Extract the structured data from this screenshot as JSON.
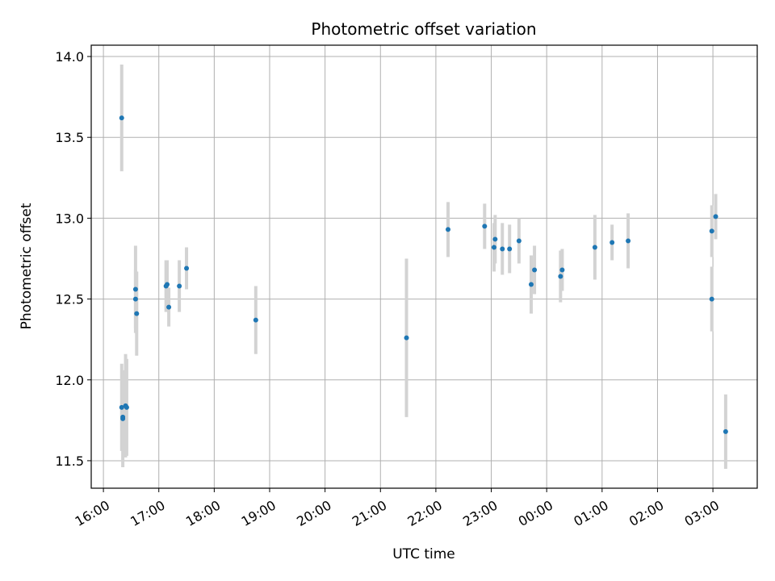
{
  "chart_data": {
    "type": "scatter",
    "title": "Photometric offset variation",
    "xlabel": "UTC time",
    "ylabel": "Photometric offset",
    "x_unit": "hours relative to 16:00 UTC (values past 24 are after midnight)",
    "xlim": [
      15.78,
      27.8
    ],
    "ylim": [
      11.33,
      14.07
    ],
    "x_ticks": [
      16,
      17,
      18,
      19,
      20,
      21,
      22,
      23,
      24,
      25,
      26,
      27
    ],
    "x_tick_labels": [
      "16:00",
      "17:00",
      "18:00",
      "19:00",
      "20:00",
      "21:00",
      "22:00",
      "23:00",
      "00:00",
      "01:00",
      "02:00",
      "03:00"
    ],
    "y_ticks": [
      11.5,
      12.0,
      12.5,
      13.0,
      13.5,
      14.0
    ],
    "y_tick_labels": [
      "11.5",
      "12.0",
      "12.5",
      "13.0",
      "13.5",
      "14.0"
    ],
    "grid": true,
    "marker_color": "#1f77b4",
    "errorbar_color": "#d3d3d3",
    "points": [
      {
        "x": 16.33,
        "y": 13.62,
        "err": 0.33
      },
      {
        "x": 16.33,
        "y": 11.83,
        "err": 0.27
      },
      {
        "x": 16.35,
        "y": 11.77,
        "err": 0.2
      },
      {
        "x": 16.35,
        "y": 11.76,
        "err": 0.3
      },
      {
        "x": 16.4,
        "y": 11.84,
        "err": 0.32
      },
      {
        "x": 16.42,
        "y": 11.83,
        "err": 0.3
      },
      {
        "x": 16.58,
        "y": 12.56,
        "err": 0.27
      },
      {
        "x": 16.58,
        "y": 12.5,
        "err": 0.18
      },
      {
        "x": 16.6,
        "y": 12.41,
        "err": 0.26
      },
      {
        "x": 17.13,
        "y": 12.58,
        "err": 0.16
      },
      {
        "x": 17.15,
        "y": 12.59,
        "err": 0.15
      },
      {
        "x": 17.18,
        "y": 12.45,
        "err": 0.12
      },
      {
        "x": 17.37,
        "y": 12.58,
        "err": 0.16
      },
      {
        "x": 17.5,
        "y": 12.69,
        "err": 0.13
      },
      {
        "x": 18.75,
        "y": 12.37,
        "err": 0.21
      },
      {
        "x": 21.47,
        "y": 12.26,
        "err": 0.49
      },
      {
        "x": 22.22,
        "y": 12.93,
        "err": 0.17
      },
      {
        "x": 22.88,
        "y": 12.95,
        "err": 0.14
      },
      {
        "x": 23.05,
        "y": 12.82,
        "err": 0.15
      },
      {
        "x": 23.07,
        "y": 12.87,
        "err": 0.15
      },
      {
        "x": 23.2,
        "y": 12.81,
        "err": 0.16
      },
      {
        "x": 23.33,
        "y": 12.81,
        "err": 0.15
      },
      {
        "x": 23.5,
        "y": 12.86,
        "err": 0.14
      },
      {
        "x": 23.72,
        "y": 12.59,
        "err": 0.18
      },
      {
        "x": 23.78,
        "y": 12.68,
        "err": 0.15
      },
      {
        "x": 24.25,
        "y": 12.64,
        "err": 0.16
      },
      {
        "x": 24.28,
        "y": 12.68,
        "err": 0.13
      },
      {
        "x": 24.87,
        "y": 12.82,
        "err": 0.2
      },
      {
        "x": 25.18,
        "y": 12.85,
        "err": 0.11
      },
      {
        "x": 25.47,
        "y": 12.86,
        "err": 0.17
      },
      {
        "x": 26.98,
        "y": 12.92,
        "err": 0.16
      },
      {
        "x": 26.98,
        "y": 12.5,
        "err": 0.2
      },
      {
        "x": 27.05,
        "y": 13.01,
        "err": 0.14
      },
      {
        "x": 27.23,
        "y": 11.68,
        "err": 0.23
      }
    ]
  }
}
